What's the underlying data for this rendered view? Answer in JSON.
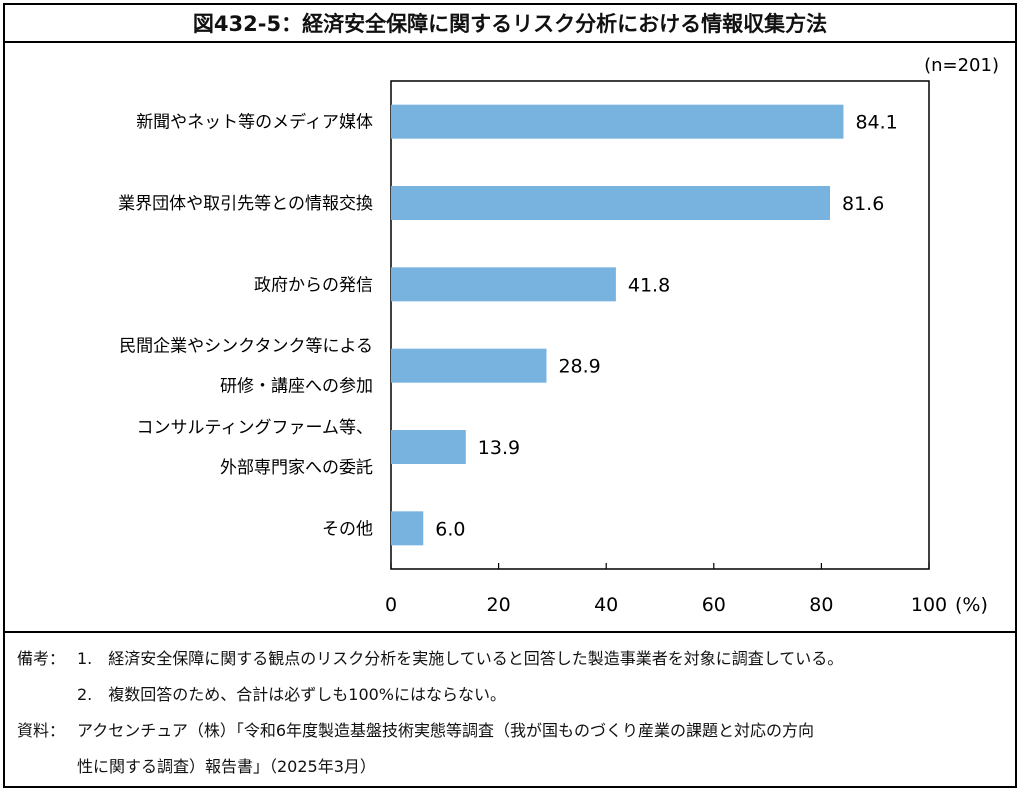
{
  "title": "図432-5：経済安全保障に関するリスク分析における情報収集方法",
  "sample_note": "(n=201)",
  "unit_label": "(%)",
  "colors": {
    "bar": "#78b2df",
    "axis": "#000000"
  },
  "chart_data": {
    "type": "bar",
    "orientation": "horizontal",
    "categories": [
      [
        "新聞やネット等のメディア媒体"
      ],
      [
        "業界団体や取引先等との情報交換"
      ],
      [
        "政府からの発信"
      ],
      [
        "民間企業やシンクタンク等による",
        "研修・講座への参加"
      ],
      [
        "コンサルティングファーム等、",
        "外部専門家への委託"
      ],
      [
        "その他"
      ]
    ],
    "values": [
      84.1,
      81.6,
      41.8,
      28.9,
      13.9,
      6.0
    ],
    "value_labels": [
      "84.1",
      "81.6",
      "41.8",
      "28.9",
      "13.9",
      "6.0"
    ],
    "xlim": [
      0,
      100
    ],
    "xticks": [
      "0",
      "20",
      "40",
      "60",
      "80",
      "100"
    ],
    "grid": false
  },
  "notes": {
    "biko_label": "備考：",
    "items": [
      "1.　経済安全保障に関する観点のリスク分析を実施していると回答した製造事業者を対象に調査している。",
      "2.　複数回答のため、合計は必ずしも100%にはならない。"
    ],
    "source_label": "資料：",
    "source_lines": [
      "アクセンチュア（株）「令和6年度製造基盤技術実態等調査（我が国ものづくり産業の課題と対応の方向",
      "性に関する調査）報告書」（2025年3月）"
    ]
  }
}
